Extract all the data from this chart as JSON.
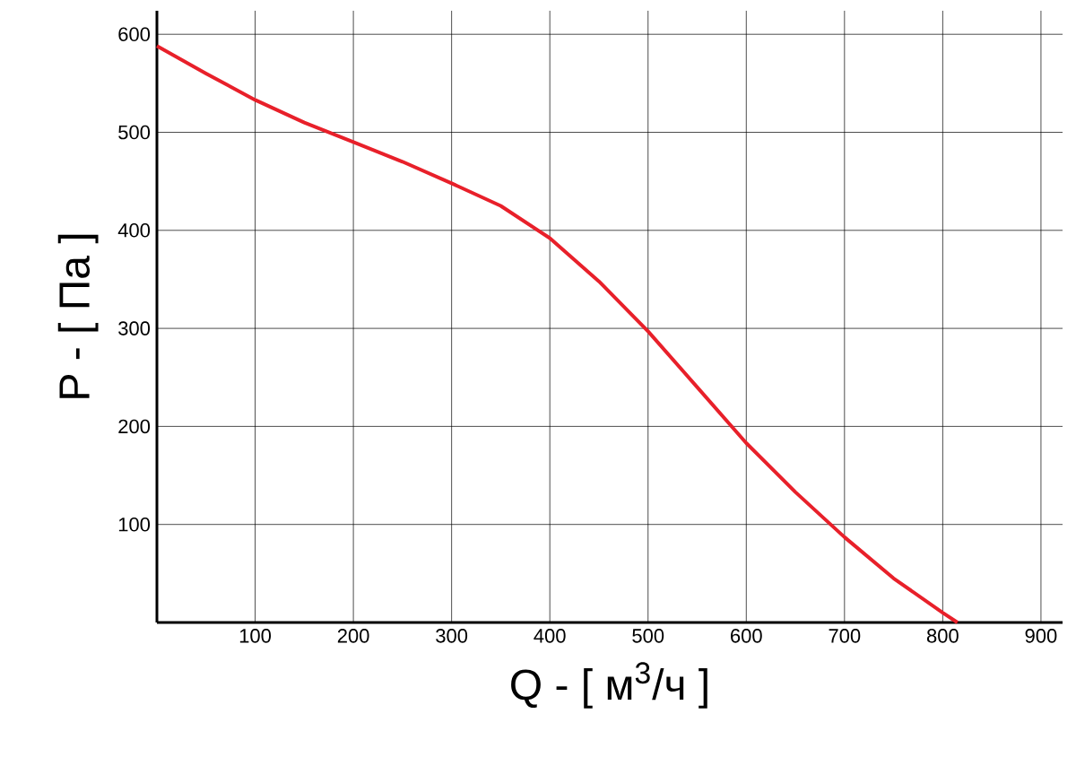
{
  "chart_data": {
    "type": "line",
    "xlabel": "Q - [ м$^{3}$/ч ]",
    "ylabel": "P - [ Па ]",
    "x": [
      0,
      50,
      100,
      150,
      200,
      250,
      300,
      350,
      400,
      450,
      500,
      550,
      600,
      650,
      700,
      750,
      800,
      815
    ],
    "series": [
      {
        "color": "#e8202a",
        "values": [
          588,
          560,
          533,
          510,
          490,
          470,
          448,
          425,
          392,
          348,
          297,
          240,
          183,
          133,
          87,
          45,
          10,
          0
        ]
      }
    ],
    "xlim": [
      0,
      922
    ],
    "ylim": [
      0,
      624
    ],
    "xticks": [
      100,
      200,
      300,
      400,
      500,
      600,
      700,
      800,
      900
    ],
    "yticks": [
      100,
      200,
      300,
      400,
      500,
      600
    ],
    "grid": true,
    "marker": "none",
    "line_style": "solid"
  }
}
